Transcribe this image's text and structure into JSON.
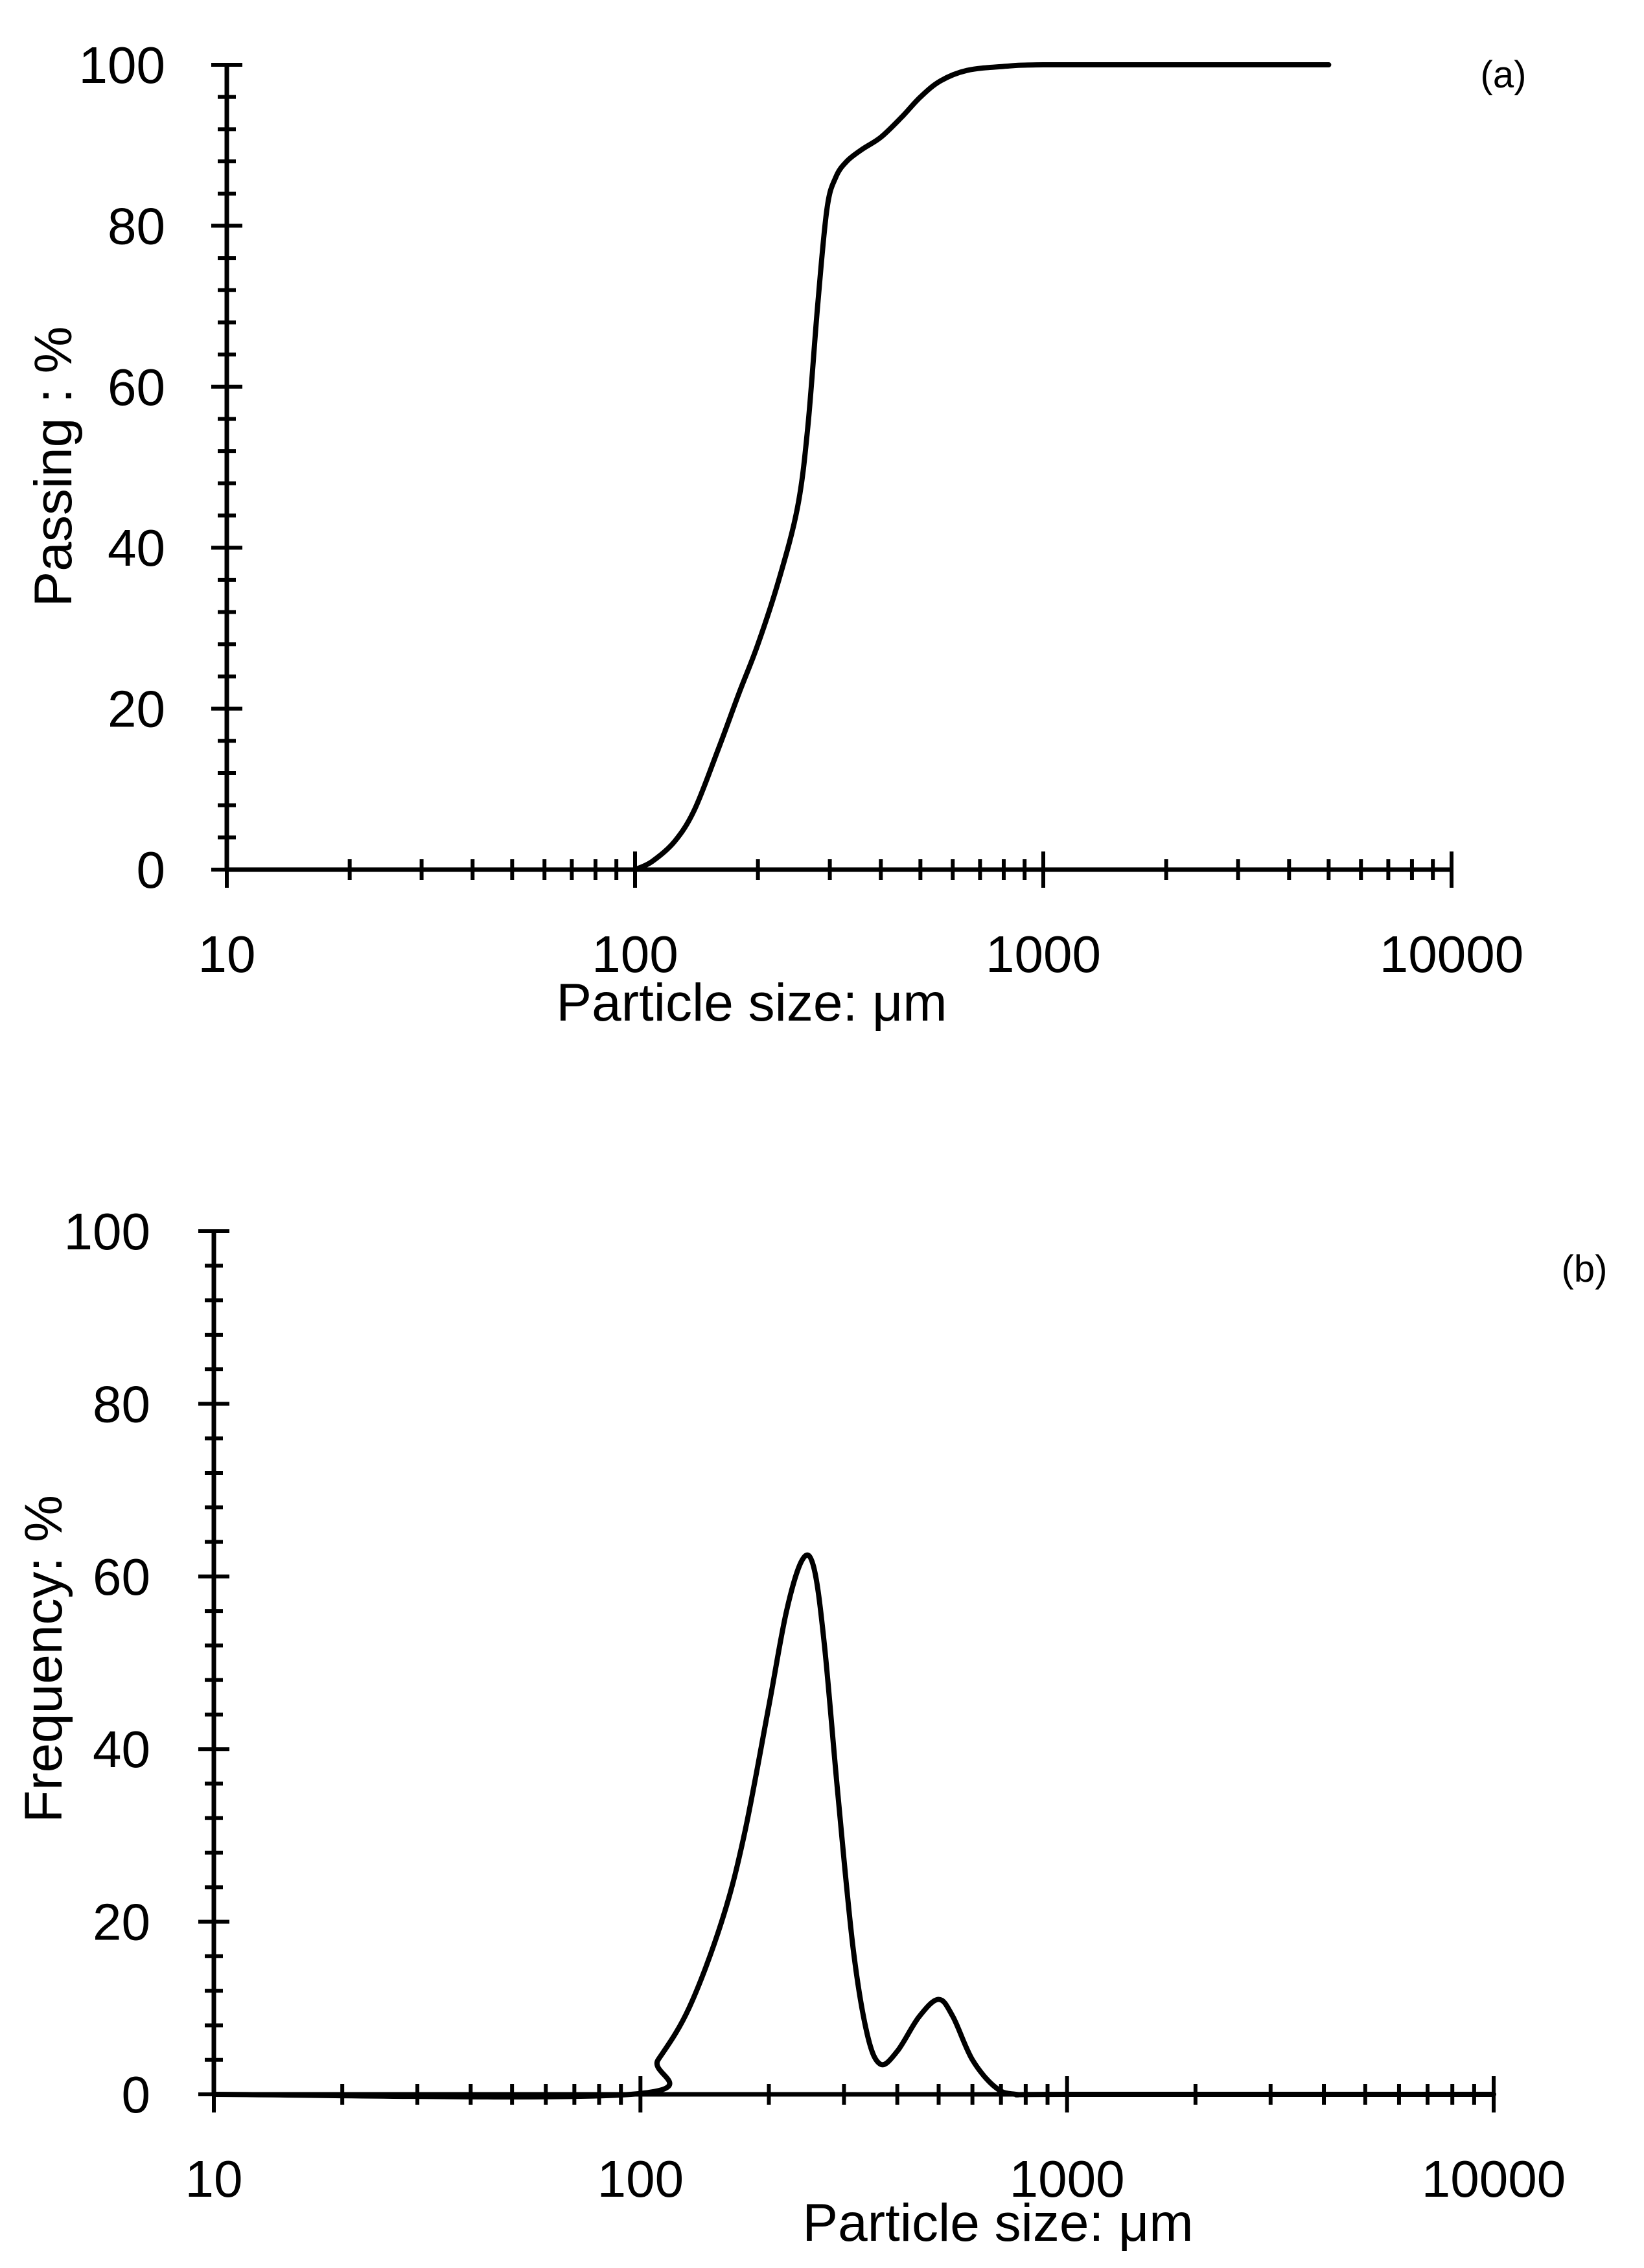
{
  "chart_data": [
    {
      "type": "line",
      "panel_label": "(a)",
      "xlabel": "Particle  size:  μm",
      "ylabel": "Passing : %",
      "xscale": "log",
      "xlim": [
        10,
        10000
      ],
      "ylim": [
        0,
        100
      ],
      "x_tick_labels": [
        "10",
        "100",
        "1000",
        "10000"
      ],
      "y_tick_labels": [
        "0",
        "20",
        "40",
        "60",
        "80",
        "100"
      ],
      "series": [
        {
          "name": "Passing",
          "x": [
            100,
            110,
            125,
            140,
            160,
            180,
            200,
            225,
            250,
            265,
            280,
            295,
            310,
            330,
            360,
            400,
            450,
            500,
            560,
            650,
            800,
            1000,
            2000,
            5000
          ],
          "values": [
            0,
            1,
            3.5,
            7.5,
            15,
            22,
            28,
            36,
            45,
            55,
            70,
            82,
            86,
            88,
            89.5,
            91,
            93.5,
            96,
            98,
            99.3,
            99.8,
            100,
            100,
            100
          ]
        }
      ]
    },
    {
      "type": "line",
      "panel_label": "(b)",
      "xlabel": "Particle  size:  μm",
      "ylabel": "Frequency: %",
      "xscale": "log",
      "xlim": [
        10,
        10000
      ],
      "ylim": [
        0,
        100
      ],
      "x_tick_labels": [
        "10",
        "100",
        "1000",
        "10000"
      ],
      "y_tick_labels": [
        "0",
        "20",
        "40",
        "60",
        "80",
        "100"
      ],
      "series": [
        {
          "name": "Frequency",
          "x": [
            10,
            95,
            110,
            130,
            155,
            175,
            200,
            220,
            240,
            255,
            270,
            290,
            315,
            340,
            365,
            400,
            450,
            500,
            540,
            600,
            680,
            760,
            1000,
            10000
          ],
          "values": [
            0,
            0,
            4,
            10,
            20,
            30,
            45,
            56,
            62,
            61,
            52,
            35,
            17,
            7,
            3.5,
            5,
            9,
            11,
            9,
            4,
            0.8,
            0,
            0,
            0
          ]
        }
      ]
    }
  ]
}
